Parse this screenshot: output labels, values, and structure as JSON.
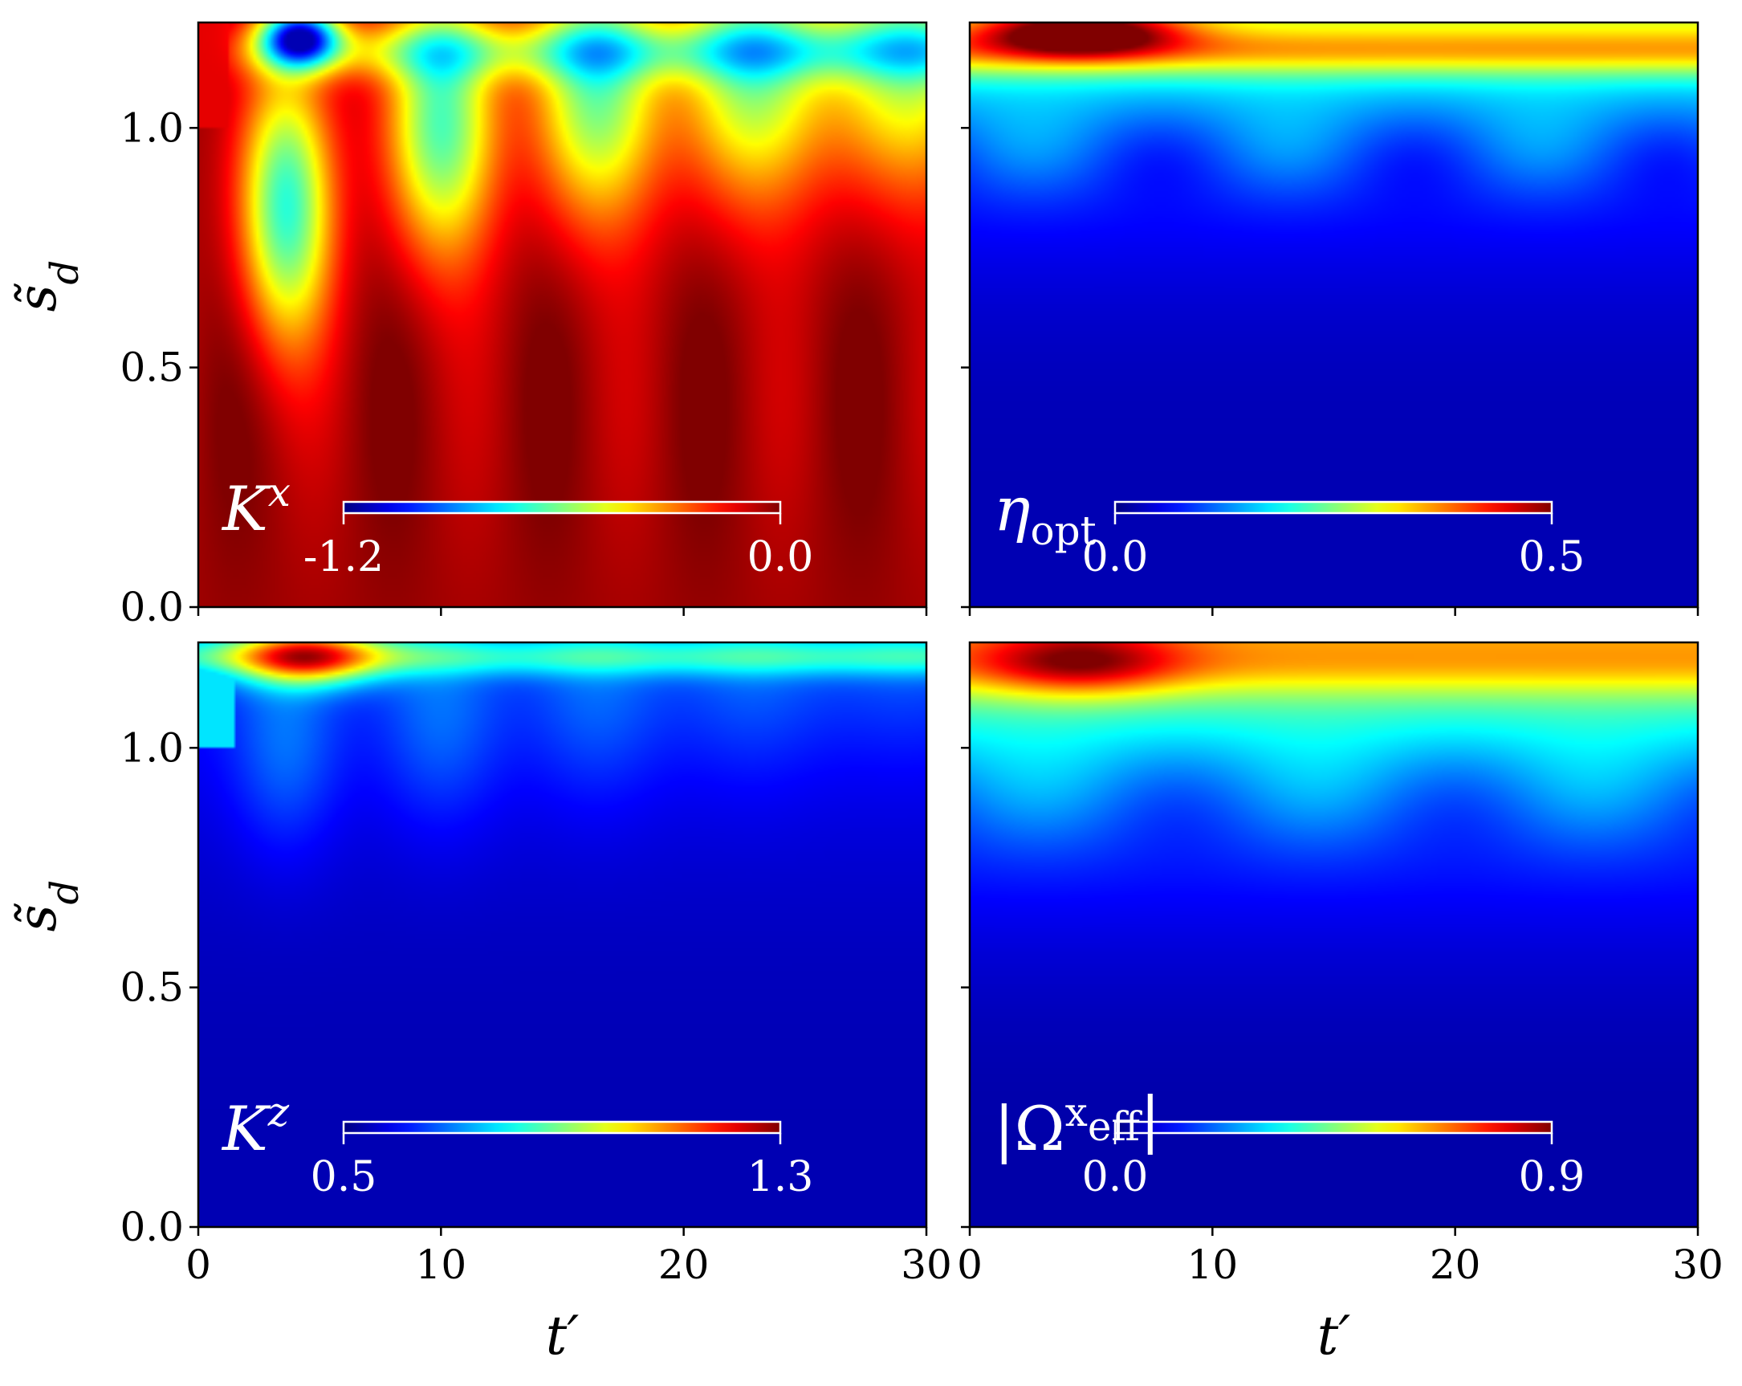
{
  "chart_data": [
    {
      "type": "heatmap",
      "position": "top-left",
      "colormap": "jet",
      "label": "K^x",
      "label_parts": [
        {
          "text": "K",
          "italic": true
        },
        {
          "text": "x",
          "italic": true,
          "sup": true
        }
      ],
      "colorbar": {
        "min": "-1.2",
        "max": "0.0"
      },
      "xlim": [
        0,
        30
      ],
      "ylim": [
        0,
        1.22
      ],
      "xticks": [
        0,
        10,
        20,
        30
      ],
      "yticks": [
        "0.0",
        "0.5",
        "1.0"
      ],
      "xtick_labels_shown": false,
      "ytick_labels_shown": true,
      "xlabel": "",
      "ylabel": "s̃_d"
    },
    {
      "type": "heatmap",
      "position": "top-right",
      "colormap": "jet",
      "label": "η_opt",
      "label_parts": [
        {
          "text": "η",
          "italic": true
        },
        {
          "text": "opt",
          "sub": true
        }
      ],
      "colorbar": {
        "min": "0.0",
        "max": "0.5"
      },
      "xlim": [
        0,
        30
      ],
      "ylim": [
        0,
        1.22
      ],
      "xticks": [
        0,
        10,
        20,
        30
      ],
      "yticks": [
        "0.0",
        "0.5",
        "1.0"
      ],
      "xtick_labels_shown": false,
      "ytick_labels_shown": false,
      "xlabel": "",
      "ylabel": ""
    },
    {
      "type": "heatmap",
      "position": "bottom-left",
      "colormap": "jet",
      "label": "K^z",
      "label_parts": [
        {
          "text": "K",
          "italic": true
        },
        {
          "text": "z",
          "italic": true,
          "sup": true
        }
      ],
      "colorbar": {
        "min": "0.5",
        "max": "1.3"
      },
      "xlim": [
        0,
        30
      ],
      "ylim": [
        0,
        1.22
      ],
      "xticks": [
        "0",
        "10",
        "20",
        "30"
      ],
      "yticks": [
        "0.0",
        "0.5",
        "1.0"
      ],
      "xtick_labels_shown": true,
      "ytick_labels_shown": true,
      "xlabel": "t′",
      "ylabel": "s̃_d"
    },
    {
      "type": "heatmap",
      "position": "bottom-right",
      "colormap": "jet",
      "label": "|Ω^x_eff|",
      "label_parts": [
        {
          "text": "|Ω"
        },
        {
          "text": "x",
          "sup": true
        },
        {
          "text": "eff",
          "sub": true
        },
        {
          "text": "|"
        }
      ],
      "colorbar": {
        "min": "0.0",
        "max": "0.9"
      },
      "xlim": [
        0,
        30
      ],
      "ylim": [
        0,
        1.22
      ],
      "xticks": [
        "0",
        "10",
        "20",
        "30"
      ],
      "yticks": [
        "0.0",
        "0.5",
        "1.0"
      ],
      "xtick_labels_shown": true,
      "ytick_labels_shown": false,
      "xlabel": "t′",
      "ylabel": ""
    }
  ]
}
